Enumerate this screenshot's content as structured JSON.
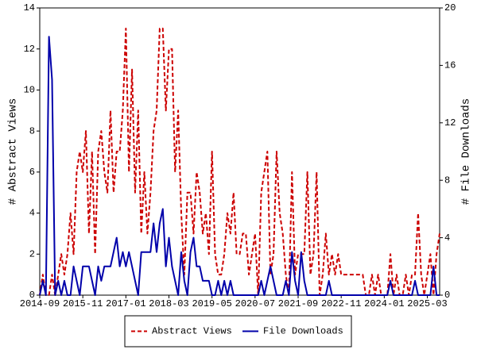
{
  "chart_data": {
    "type": "line",
    "y_label": "# Abstract Views",
    "y2_label": "# File Downloads",
    "categories": [
      "2014-09",
      null,
      null,
      null,
      null,
      null,
      null,
      null,
      null,
      null,
      null,
      null,
      null,
      null,
      "2015-11",
      null,
      null,
      null,
      null,
      null,
      null,
      null,
      null,
      null,
      null,
      null,
      null,
      null,
      "2017-01",
      null,
      null,
      null,
      null,
      null,
      null,
      null,
      null,
      null,
      null,
      null,
      null,
      null,
      "2018-03",
      null,
      null,
      null,
      null,
      null,
      null,
      null,
      null,
      null,
      null,
      null,
      null,
      null,
      "2019-05",
      null,
      null,
      null,
      null,
      null,
      null,
      null,
      null,
      null,
      null,
      null,
      null,
      null,
      "2020-07",
      null,
      null,
      null,
      null,
      null,
      null,
      null,
      null,
      null,
      null,
      null,
      null,
      null,
      "2021-09",
      null,
      null,
      null,
      null,
      null,
      null,
      null,
      null,
      null,
      null,
      null,
      null,
      null,
      "2022-11",
      null,
      null,
      null,
      null,
      null,
      null,
      null,
      null,
      null,
      null,
      null,
      null,
      null,
      "2024-01",
      null,
      null,
      null,
      null,
      null,
      null,
      null,
      null,
      null,
      null,
      null,
      null,
      null,
      "2025-03",
      null,
      null,
      null,
      null
    ],
    "series": [
      {
        "name": "Abstract Views",
        "color": "#cc0000",
        "dashed": true,
        "axis": "y",
        "values": [
          0,
          1,
          0,
          0,
          1,
          0,
          1,
          2,
          1,
          2,
          4,
          2,
          6,
          7,
          6,
          8,
          3,
          7,
          2,
          7,
          8,
          6,
          5,
          9,
          5,
          7,
          7,
          9,
          13,
          6,
          11,
          5,
          9,
          3,
          6,
          3,
          5,
          8,
          9,
          13,
          13,
          9,
          12,
          12,
          6,
          9,
          4,
          1,
          5,
          5,
          3,
          6,
          5,
          3,
          4,
          2,
          7,
          2,
          1,
          1,
          2,
          4,
          3,
          5,
          2,
          2,
          3,
          3,
          1,
          2,
          3,
          0,
          5,
          6,
          7,
          1,
          2,
          7,
          4,
          3,
          1,
          0,
          6,
          1,
          2,
          2,
          2,
          6,
          1,
          2,
          6,
          0,
          1,
          3,
          1,
          2,
          1,
          2,
          1,
          1,
          1,
          1,
          1,
          1,
          1,
          1,
          0,
          0,
          1,
          0,
          1,
          0,
          0,
          0,
          2,
          0,
          1,
          0,
          0,
          1,
          0,
          1,
          1,
          4,
          1,
          0,
          1,
          2,
          0,
          2,
          3
        ]
      },
      {
        "name": "File Downloads",
        "color": "#0000aa",
        "dashed": false,
        "axis": "y2",
        "values": [
          0,
          1,
          0,
          18,
          15,
          0,
          1,
          0,
          1,
          0,
          0,
          2,
          1,
          0,
          2,
          2,
          2,
          1,
          0,
          2,
          1,
          2,
          2,
          2,
          3,
          4,
          2,
          3,
          2,
          3,
          2,
          1,
          0,
          3,
          3,
          3,
          3,
          5,
          3,
          5,
          6,
          2,
          4,
          2,
          1,
          0,
          3,
          1,
          0,
          3,
          4,
          2,
          2,
          1,
          1,
          1,
          0,
          0,
          1,
          0,
          1,
          0,
          1,
          0,
          0,
          0,
          0,
          0,
          0,
          0,
          0,
          0,
          1,
          0,
          1,
          2,
          1,
          0,
          0,
          0,
          1,
          0,
          3,
          1,
          0,
          3,
          1,
          0,
          0,
          0,
          0,
          0,
          0,
          0,
          1,
          0,
          0,
          0,
          0,
          0,
          0,
          0,
          0,
          0,
          0,
          0,
          0,
          0,
          0,
          0,
          0,
          0,
          0,
          0,
          1,
          0,
          0,
          0,
          0,
          0,
          0,
          0,
          1,
          0,
          0,
          0,
          0,
          0,
          2,
          0,
          0
        ]
      }
    ],
    "ylim": [
      0,
      14
    ],
    "yticks": [
      0,
      2,
      4,
      6,
      8,
      10,
      12,
      14
    ],
    "y2lim": [
      0,
      20
    ],
    "y2ticks": [
      0,
      4,
      8,
      12,
      16,
      20
    ],
    "grid": false,
    "legend": "bottom"
  }
}
